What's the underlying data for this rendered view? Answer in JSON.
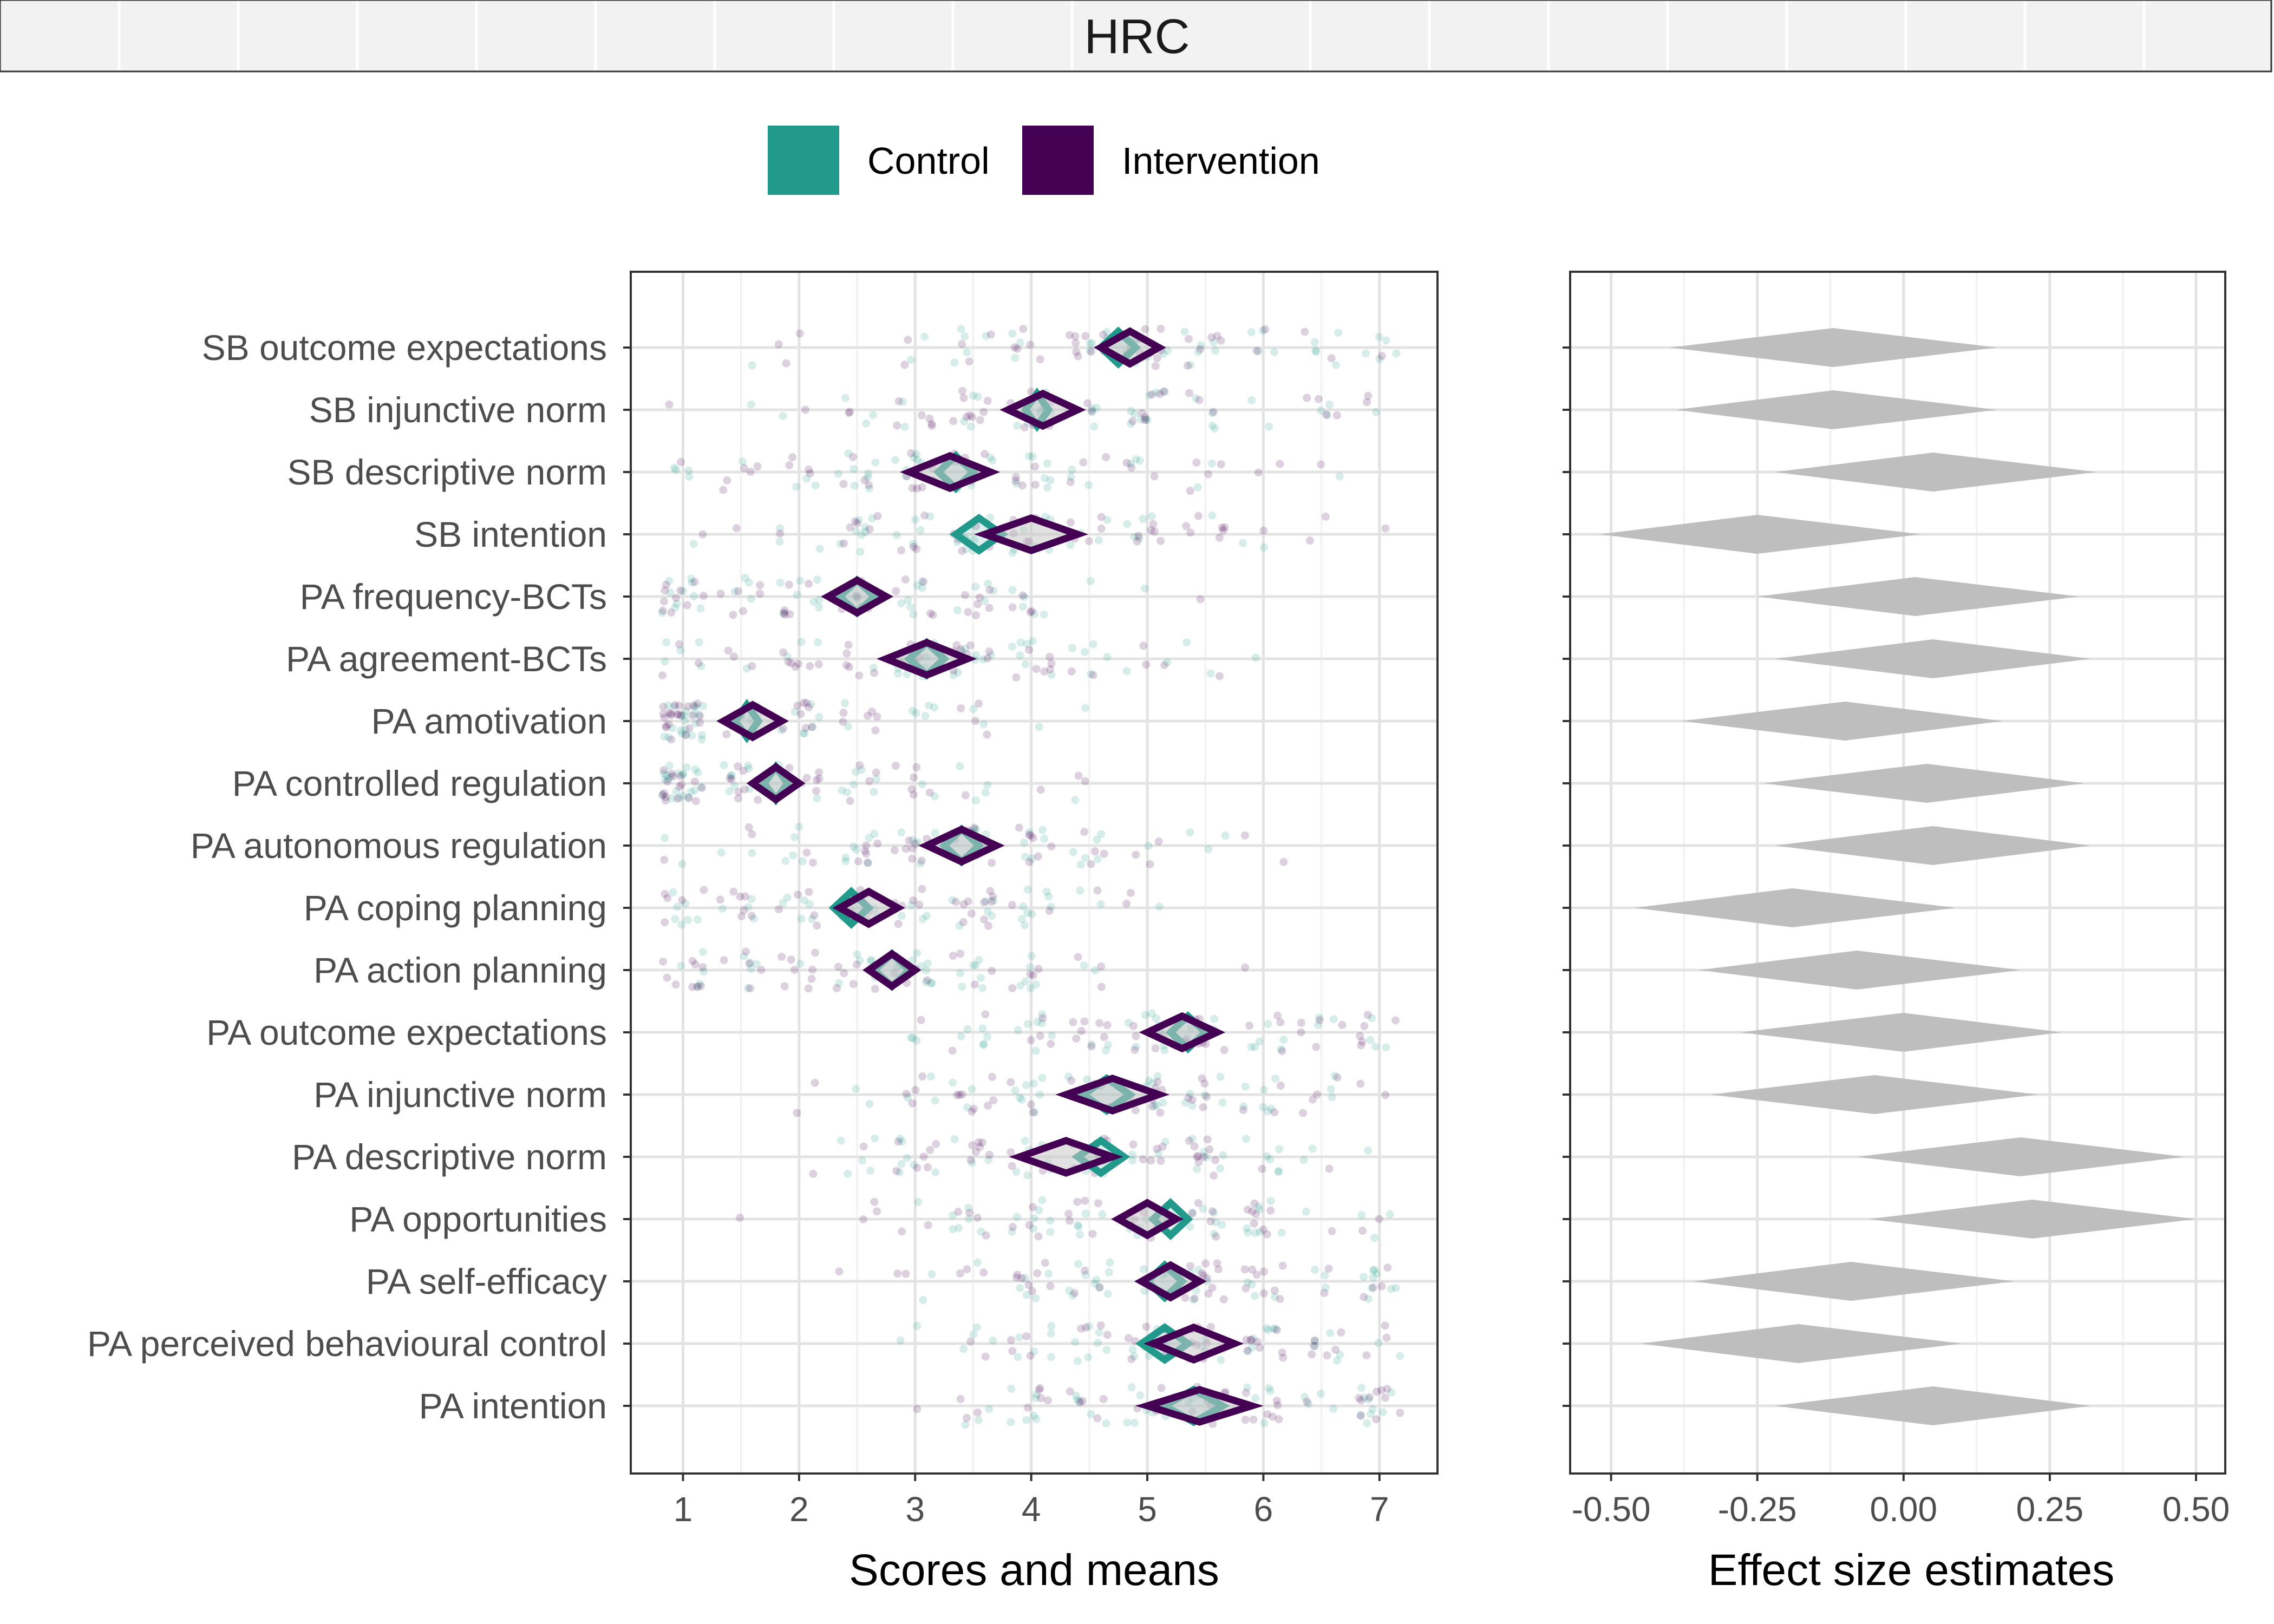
{
  "chart_data": [
    {
      "type": "scatter",
      "subtype": "jittered-points-with-mean-diamonds",
      "strip_label": "HRC",
      "xlabel": "Scores and means",
      "xlim": [
        0.55,
        7.5
      ],
      "xticks": [
        1,
        2,
        3,
        4,
        5,
        6,
        7
      ],
      "grid": true,
      "legend": {
        "position": "top",
        "entries": [
          {
            "name": "Control",
            "color": "#21998B"
          },
          {
            "name": "Intervention",
            "color": "#440154"
          }
        ]
      },
      "categories": [
        "SB outcome expectations",
        "SB injunctive norm",
        "SB descriptive norm",
        "SB intention",
        "PA frequency-BCTs",
        "PA agreement-BCTs",
        "PA amotivation",
        "PA controlled regulation",
        "PA autonomous regulation",
        "PA coping planning",
        "PA action planning",
        "PA outcome expectations",
        "PA injunctive norm",
        "PA descriptive norm",
        "PA opportunities",
        "PA self-efficacy",
        "PA perceived behavioural control",
        "PA intention"
      ],
      "series": [
        {
          "name": "Control",
          "color": "#21998B",
          "mean": [
            4.75,
            4.05,
            3.35,
            3.55,
            2.5,
            3.1,
            1.55,
            1.8,
            3.4,
            2.45,
            2.8,
            5.35,
            4.65,
            4.6,
            5.2,
            5.15,
            5.15,
            5.4
          ],
          "ci_low": [
            4.6,
            3.95,
            3.2,
            3.35,
            2.35,
            2.95,
            1.45,
            1.7,
            3.25,
            2.3,
            2.65,
            5.2,
            4.45,
            4.4,
            5.05,
            5.0,
            4.95,
            5.15
          ],
          "ci_high": [
            4.9,
            4.15,
            3.5,
            3.75,
            2.65,
            3.25,
            1.65,
            1.9,
            3.55,
            2.6,
            2.95,
            5.5,
            4.85,
            4.8,
            5.35,
            5.3,
            5.35,
            5.65
          ]
        },
        {
          "name": "Intervention",
          "color": "#440154",
          "mean": [
            4.85,
            4.1,
            3.3,
            4.0,
            2.5,
            3.1,
            1.6,
            1.8,
            3.4,
            2.6,
            2.8,
            5.3,
            4.7,
            4.3,
            5.0,
            5.2,
            5.4,
            5.45
          ],
          "ci_low": [
            4.6,
            3.8,
            2.95,
            3.6,
            2.25,
            2.75,
            1.35,
            1.6,
            3.1,
            2.35,
            2.6,
            5.0,
            4.3,
            3.9,
            4.75,
            4.95,
            5.05,
            5.0
          ],
          "ci_high": [
            5.1,
            4.4,
            3.65,
            4.4,
            2.75,
            3.45,
            1.85,
            2.0,
            3.7,
            2.85,
            3.0,
            5.6,
            5.1,
            4.7,
            5.25,
            5.45,
            5.75,
            5.9
          ]
        }
      ]
    },
    {
      "type": "interval",
      "subtype": "effect-size-diamonds",
      "xlabel": "Effect size estimates",
      "xlim": [
        -0.57,
        0.55
      ],
      "xticks": [
        -0.5,
        -0.25,
        0.0,
        0.25,
        0.5
      ],
      "xtick_labels": [
        "-0.50",
        "-0.25",
        "0.00",
        "0.25",
        "0.50"
      ],
      "grid": true,
      "color": "#BEBEBE",
      "categories_shared_with_left": true,
      "estimate": [
        -0.12,
        -0.12,
        0.05,
        -0.25,
        0.02,
        0.05,
        -0.1,
        0.04,
        0.05,
        -0.19,
        -0.08,
        0.0,
        -0.05,
        0.2,
        0.22,
        -0.09,
        -0.18,
        0.05
      ],
      "ci_low": [
        -0.4,
        -0.39,
        -0.22,
        -0.52,
        -0.25,
        -0.22,
        -0.38,
        -0.24,
        -0.22,
        -0.46,
        -0.35,
        -0.28,
        -0.33,
        -0.08,
        -0.06,
        -0.36,
        -0.45,
        -0.22
      ],
      "ci_high": [
        0.16,
        0.16,
        0.33,
        0.03,
        0.3,
        0.32,
        0.17,
        0.31,
        0.32,
        0.09,
        0.2,
        0.27,
        0.23,
        0.48,
        0.5,
        0.19,
        0.1,
        0.32
      ]
    }
  ]
}
